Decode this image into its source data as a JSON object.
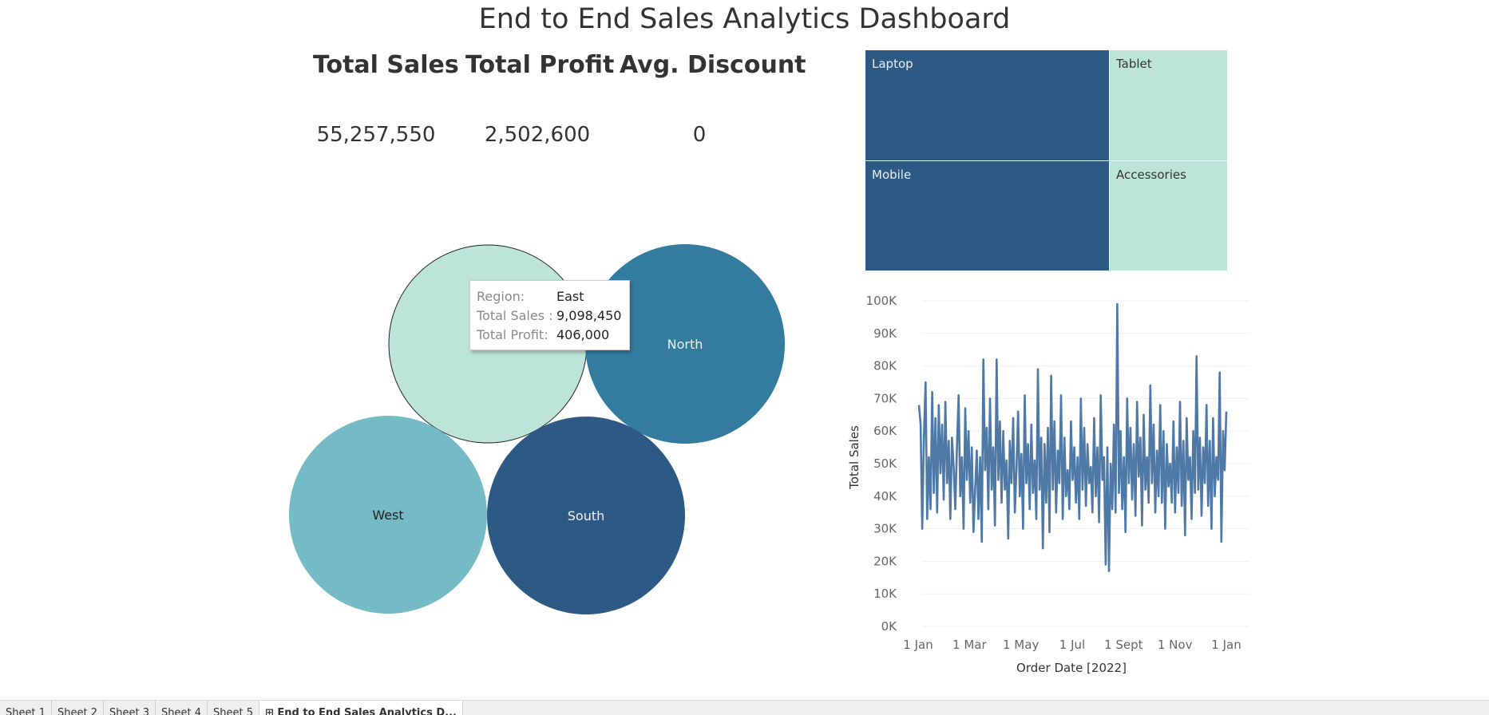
{
  "title": "End to End Sales Analytics Dashboard",
  "kpis": [
    {
      "label": "Total Sales",
      "value": "55,257,550"
    },
    {
      "label": "Total Profit",
      "value": "2,502,600"
    },
    {
      "label": "Avg. Discount",
      "value": "0"
    }
  ],
  "bubbles": [
    {
      "region": "East",
      "label": "",
      "color": "#bce4d8"
    },
    {
      "region": "North",
      "label": "North",
      "color": "#337c9f"
    },
    {
      "region": "West",
      "label": "West",
      "color": "#74bbc6"
    },
    {
      "region": "South",
      "label": "South",
      "color": "#2d5985"
    }
  ],
  "tooltip": {
    "rows": [
      {
        "key": "Region:",
        "value": "East"
      },
      {
        "key": "Total Sales :",
        "value": "9,098,450"
      },
      {
        "key": "Total Profit:",
        "value": "406,000"
      }
    ]
  },
  "treemap": [
    {
      "label": "Laptop",
      "color": "#2d5985"
    },
    {
      "label": "Tablet",
      "color": "#bce4d8"
    },
    {
      "label": "Mobile",
      "color": "#2d5985"
    },
    {
      "label": "Accessories",
      "color": "#bce4d8"
    }
  ],
  "chart_data": {
    "type": "line",
    "xlabel": "Order Date [2022]",
    "ylabel": "Total Sales",
    "x_ticks": [
      "1 Jan",
      "1 Mar",
      "1 May",
      "1 Jul",
      "1 Sept",
      "1 Nov",
      "1 Jan"
    ],
    "y_ticks": [
      "0K",
      "10K",
      "20K",
      "30K",
      "40K",
      "50K",
      "60K",
      "70K",
      "80K",
      "90K",
      "100K"
    ],
    "ylim": [
      0,
      100000
    ],
    "series_color": "#4e79a7",
    "values": [
      68000,
      62000,
      30000,
      58000,
      75000,
      33000,
      52000,
      36000,
      72000,
      41000,
      64000,
      35000,
      68000,
      47000,
      62000,
      39000,
      69000,
      44000,
      57000,
      33000,
      58000,
      49000,
      36000,
      55000,
      71000,
      40000,
      52000,
      30000,
      67000,
      45000,
      60000,
      38000,
      55000,
      29000,
      42000,
      54000,
      33000,
      52000,
      26000,
      82000,
      48000,
      61000,
      36000,
      70000,
      42000,
      55000,
      31000,
      82000,
      45000,
      63000,
      38000,
      60000,
      42000,
      51000,
      27000,
      57000,
      44000,
      64000,
      35000,
      48000,
      66000,
      40000,
      53000,
      30000,
      71000,
      44000,
      56000,
      36000,
      62000,
      41000,
      51000,
      33000,
      79000,
      42000,
      58000,
      24000,
      56000,
      38000,
      61000,
      29000,
      77000,
      42000,
      63000,
      35000,
      54000,
      44000,
      71000,
      33000,
      58000,
      40000,
      48000,
      36000,
      63000,
      45000,
      55000,
      38000,
      52000,
      33000,
      70000,
      42000,
      61000,
      37000,
      56000,
      44000,
      49000,
      35000,
      64000,
      40000,
      55000,
      32000,
      71000,
      45000,
      52000,
      19000,
      55000,
      17000,
      50000,
      36000,
      62000,
      35000,
      99000,
      41000,
      60000,
      36000,
      52000,
      29000,
      70000,
      44000,
      61000,
      39000,
      56000,
      34000,
      69000,
      46000,
      58000,
      31000,
      65000,
      42000,
      52000,
      38000,
      74000,
      44000,
      62000,
      35000,
      54000,
      40000,
      68000,
      38000,
      60000,
      30000,
      56000,
      43000,
      50000,
      38000,
      63000,
      35000,
      55000,
      41000,
      69000,
      37000,
      57000,
      28000,
      64000,
      45000,
      52000,
      33000,
      60000,
      41000,
      83000,
      42000,
      58000,
      34000,
      55000,
      44000,
      68000,
      37000,
      57000,
      30000,
      64000,
      40000,
      52000,
      45000,
      78000,
      26000,
      60000,
      48000,
      66000
    ]
  },
  "tabs": [
    {
      "label": "Sheet 1",
      "active": false
    },
    {
      "label": "Sheet 2",
      "active": false
    },
    {
      "label": "Sheet 3",
      "active": false
    },
    {
      "label": "Sheet 4",
      "active": false
    },
    {
      "label": "Sheet 5",
      "active": false
    },
    {
      "label": "⊞ End to End Sales Analytics D...",
      "active": true
    }
  ]
}
